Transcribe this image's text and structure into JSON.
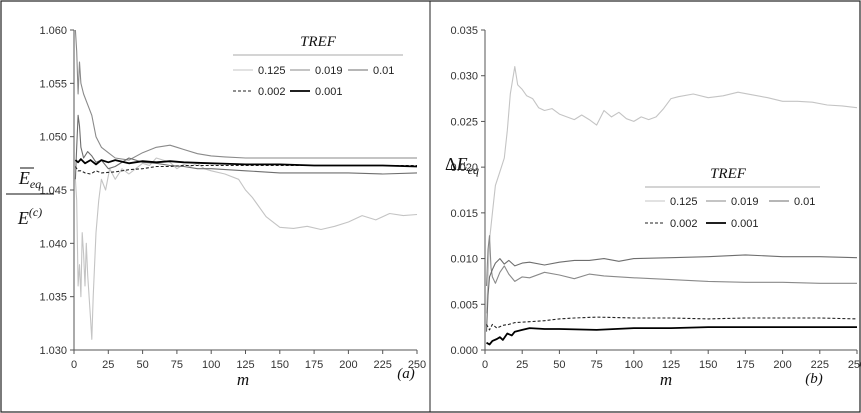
{
  "chart_data": [
    {
      "type": "line",
      "panel_label": "(a)",
      "ylabel": {
        "top": "E",
        "top_sub": "eq",
        "bottom": "E",
        "bottom_sup": "(c)"
      },
      "xlabel": "m",
      "xlim": [
        0,
        250
      ],
      "ylim": [
        1.03,
        1.06
      ],
      "xticks": [
        "0",
        "25",
        "50",
        "75",
        "100",
        "125",
        "150",
        "175",
        "200",
        "225",
        "250"
      ],
      "yticks": [
        "1.030",
        "1.035",
        "1.040",
        "1.045",
        "1.050",
        "1.055",
        "1.060"
      ],
      "legend": {
        "title": "TREF",
        "placement": "top-right",
        "rows": [
          [
            "0.125",
            "0.019",
            "0.01"
          ],
          [
            "0.002",
            "0.001"
          ]
        ]
      },
      "series": [
        {
          "name": "0.125",
          "color": "#c4c4c4",
          "dash": "",
          "width": 1.1,
          "x": [
            1,
            2,
            3,
            4,
            5,
            6,
            7,
            8,
            9,
            10,
            11,
            12,
            13,
            14,
            16,
            18,
            20,
            23,
            26,
            30,
            35,
            40,
            45,
            50,
            55,
            60,
            65,
            70,
            75,
            80,
            85,
            90,
            95,
            100,
            110,
            120,
            125,
            130,
            140,
            150,
            160,
            170,
            180,
            190,
            200,
            210,
            220,
            230,
            240,
            250
          ],
          "y": [
            1.046,
            1.044,
            1.036,
            1.038,
            1.035,
            1.041,
            1.039,
            1.036,
            1.04,
            1.037,
            1.035,
            1.033,
            1.031,
            1.035,
            1.041,
            1.044,
            1.046,
            1.045,
            1.047,
            1.046,
            1.047,
            1.0465,
            1.047,
            1.0475,
            1.0473,
            1.048,
            1.0478,
            1.0476,
            1.047,
            1.0474,
            1.0472,
            1.0475,
            1.047,
            1.0468,
            1.0465,
            1.046,
            1.045,
            1.0443,
            1.0425,
            1.0415,
            1.0414,
            1.0416,
            1.0413,
            1.0416,
            1.042,
            1.0426,
            1.0422,
            1.0428,
            1.0426,
            1.0427
          ]
        },
        {
          "name": "0.019",
          "color": "#8a8a8a",
          "dash": "",
          "width": 1.1,
          "x": [
            1,
            2,
            3,
            4,
            5,
            7,
            10,
            13,
            16,
            20,
            25,
            30,
            40,
            50,
            60,
            70,
            75,
            80,
            90,
            100,
            110,
            125,
            150,
            175,
            200,
            225,
            250
          ],
          "y": [
            1.06,
            1.058,
            1.054,
            1.057,
            1.055,
            1.054,
            1.053,
            1.052,
            1.05,
            1.049,
            1.0485,
            1.048,
            1.0478,
            1.0485,
            1.049,
            1.0492,
            1.049,
            1.0488,
            1.0484,
            1.0482,
            1.0481,
            1.048,
            1.048,
            1.048,
            1.048,
            1.048,
            1.048
          ]
        },
        {
          "name": "0.01",
          "color": "#6e6e6e",
          "dash": "",
          "width": 1.1,
          "x": [
            1,
            2,
            3,
            4,
            5,
            7,
            10,
            13,
            16,
            20,
            25,
            30,
            40,
            50,
            60,
            70,
            80,
            90,
            100,
            125,
            150,
            175,
            200,
            225,
            250
          ],
          "y": [
            1.046,
            1.049,
            1.052,
            1.051,
            1.049,
            1.048,
            1.0486,
            1.0482,
            1.0476,
            1.0478,
            1.047,
            1.0472,
            1.048,
            1.0476,
            1.0475,
            1.0473,
            1.0472,
            1.047,
            1.047,
            1.0468,
            1.0466,
            1.0466,
            1.0466,
            1.0465,
            1.0466
          ]
        },
        {
          "name": "0.002",
          "color": "#222222",
          "dash": "3,2",
          "width": 1.1,
          "x": [
            1,
            3,
            5,
            8,
            12,
            16,
            20,
            30,
            40,
            50,
            60,
            70,
            80,
            100,
            125,
            150,
            175,
            200,
            225,
            250
          ],
          "y": [
            1.0472,
            1.0468,
            1.0468,
            1.0466,
            1.0465,
            1.0468,
            1.0466,
            1.0467,
            1.0469,
            1.047,
            1.0472,
            1.0472,
            1.0473,
            1.0473,
            1.0473,
            1.0473,
            1.0473,
            1.0473,
            1.0473,
            1.0473
          ]
        },
        {
          "name": "0.001",
          "color": "#000000",
          "dash": "",
          "width": 1.8,
          "x": [
            1,
            3,
            5,
            8,
            12,
            16,
            20,
            25,
            30,
            40,
            50,
            60,
            70,
            80,
            100,
            125,
            150,
            175,
            200,
            225,
            250
          ],
          "y": [
            1.0478,
            1.0476,
            1.0479,
            1.0475,
            1.0478,
            1.0474,
            1.0478,
            1.0476,
            1.0478,
            1.0475,
            1.0477,
            1.0476,
            1.0477,
            1.0476,
            1.0475,
            1.0474,
            1.0474,
            1.0473,
            1.0473,
            1.0473,
            1.0472
          ]
        }
      ]
    },
    {
      "type": "line",
      "panel_label": "(b)",
      "ylabel": {
        "prefix": "Δ",
        "top": "E",
        "top_sub": "eq"
      },
      "xlabel": "m",
      "xlim": [
        0,
        250
      ],
      "ylim": [
        0,
        0.035
      ],
      "xticks": [
        "0",
        "25",
        "50",
        "75",
        "100",
        "125",
        "150",
        "175",
        "200",
        "225",
        "250"
      ],
      "yticks": [
        "0.000",
        "0.005",
        "0.010",
        "0.015",
        "0.020",
        "0.025",
        "0.030",
        "0.035"
      ],
      "legend": {
        "title": "TREF",
        "placement": "center-right",
        "rows": [
          [
            "0.125",
            "0.019",
            "0.01"
          ],
          [
            "0.002",
            "0.001"
          ]
        ]
      },
      "series": [
        {
          "name": "0.125",
          "color": "#c4c4c4",
          "dash": "",
          "width": 1.1,
          "x": [
            1,
            2,
            3,
            5,
            7,
            9,
            11,
            13,
            15,
            17,
            19,
            20,
            22,
            25,
            28,
            32,
            36,
            40,
            45,
            50,
            55,
            60,
            65,
            70,
            75,
            80,
            85,
            90,
            95,
            100,
            105,
            110,
            115,
            120,
            125,
            130,
            140,
            150,
            160,
            170,
            180,
            190,
            200,
            210,
            220,
            230,
            240,
            250
          ],
          "y": [
            0.004,
            0.008,
            0.012,
            0.015,
            0.018,
            0.019,
            0.02,
            0.021,
            0.024,
            0.028,
            0.03,
            0.031,
            0.029,
            0.0285,
            0.0278,
            0.0275,
            0.0265,
            0.0262,
            0.0264,
            0.0258,
            0.0255,
            0.0252,
            0.0257,
            0.0252,
            0.0246,
            0.0262,
            0.0255,
            0.026,
            0.0253,
            0.025,
            0.0255,
            0.0252,
            0.0255,
            0.0264,
            0.0275,
            0.0277,
            0.028,
            0.0276,
            0.0278,
            0.0282,
            0.0279,
            0.0276,
            0.0272,
            0.0272,
            0.0271,
            0.0268,
            0.0267,
            0.0265
          ]
        },
        {
          "name": "0.019",
          "color": "#8a8a8a",
          "dash": "",
          "width": 1.1,
          "x": [
            1,
            2,
            3,
            4,
            5,
            7,
            10,
            13,
            16,
            20,
            25,
            30,
            40,
            50,
            60,
            70,
            80,
            100,
            125,
            150,
            175,
            200,
            225,
            250
          ],
          "y": [
            0.007,
            0.011,
            0.0125,
            0.009,
            0.008,
            0.0073,
            0.0085,
            0.0092,
            0.0083,
            0.0075,
            0.008,
            0.0079,
            0.0085,
            0.0082,
            0.0078,
            0.0083,
            0.0081,
            0.0079,
            0.0077,
            0.0075,
            0.0074,
            0.0074,
            0.0073,
            0.0073
          ]
        },
        {
          "name": "0.01",
          "color": "#6e6e6e",
          "dash": "",
          "width": 1.1,
          "x": [
            1,
            2,
            3,
            5,
            7,
            10,
            13,
            16,
            20,
            25,
            30,
            40,
            50,
            60,
            70,
            80,
            90,
            100,
            125,
            150,
            175,
            200,
            225,
            250
          ],
          "y": [
            0.002,
            0.006,
            0.008,
            0.0088,
            0.0095,
            0.01,
            0.0094,
            0.0098,
            0.0092,
            0.0095,
            0.0096,
            0.0093,
            0.0096,
            0.0098,
            0.0098,
            0.01,
            0.0097,
            0.01,
            0.0101,
            0.0102,
            0.0104,
            0.0102,
            0.0102,
            0.0101
          ]
        },
        {
          "name": "0.002",
          "color": "#222222",
          "dash": "3,2",
          "width": 1.1,
          "x": [
            1,
            3,
            5,
            8,
            12,
            16,
            20,
            30,
            40,
            50,
            60,
            75,
            100,
            125,
            150,
            175,
            200,
            225,
            250
          ],
          "y": [
            0.0028,
            0.0022,
            0.0028,
            0.0024,
            0.0027,
            0.0028,
            0.003,
            0.0031,
            0.0032,
            0.0034,
            0.0035,
            0.0036,
            0.0035,
            0.0035,
            0.0034,
            0.0035,
            0.0035,
            0.0035,
            0.0034
          ]
        },
        {
          "name": "0.001",
          "color": "#000000",
          "dash": "",
          "width": 1.8,
          "x": [
            1,
            3,
            5,
            8,
            10,
            12,
            15,
            18,
            20,
            25,
            30,
            40,
            50,
            75,
            100,
            125,
            150,
            175,
            200,
            225,
            250
          ],
          "y": [
            0.0008,
            0.0006,
            0.001,
            0.0012,
            0.0014,
            0.0011,
            0.0018,
            0.0016,
            0.002,
            0.0022,
            0.0024,
            0.0023,
            0.0023,
            0.0022,
            0.0024,
            0.0024,
            0.0025,
            0.0025,
            0.0025,
            0.0025,
            0.0025
          ]
        }
      ]
    }
  ]
}
